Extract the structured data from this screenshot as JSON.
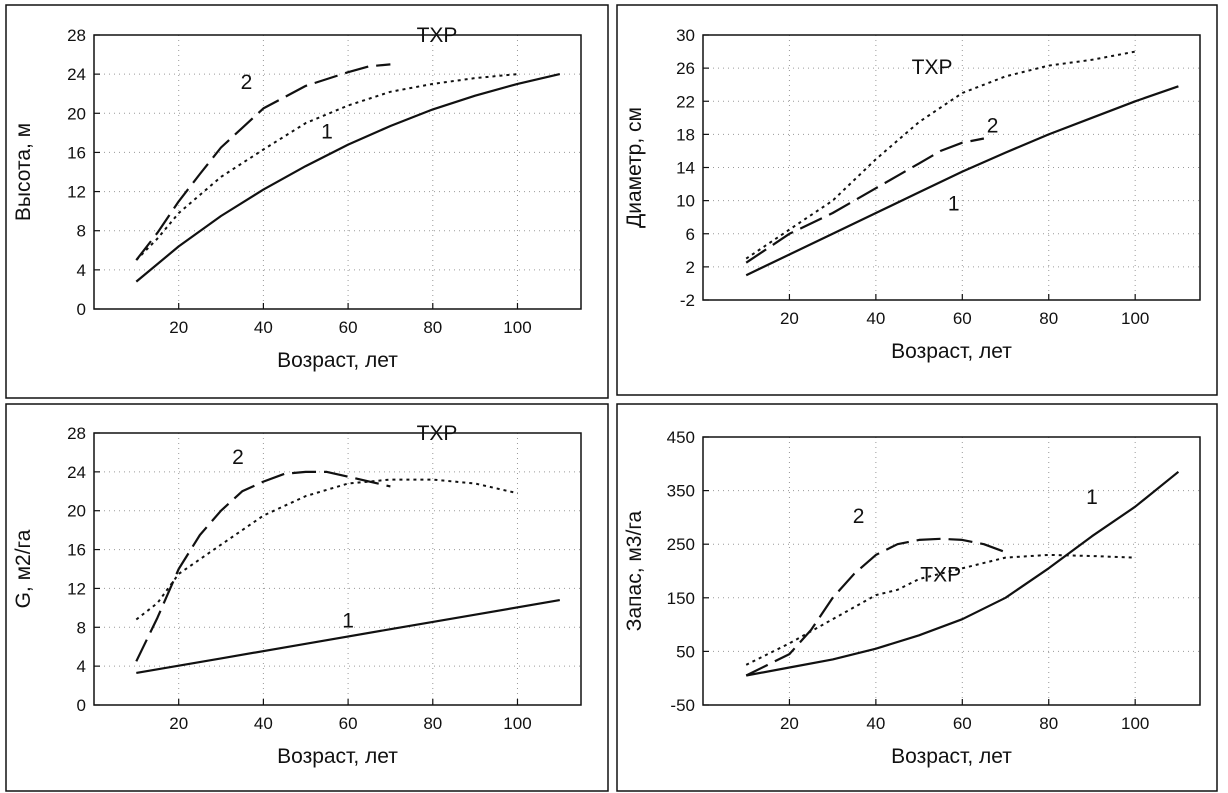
{
  "colors": {
    "ink": "#111111",
    "background": "#ffffff",
    "grid": "#9a9a9a"
  },
  "chart_data": [
    {
      "type": "line",
      "ylabel": "Высота, м",
      "xlabel": "Возраст, лет",
      "xlim": [
        0,
        115
      ],
      "ylim": [
        0,
        28
      ],
      "xticks": [
        20,
        40,
        60,
        80,
        100
      ],
      "yticks": [
        0,
        4,
        8,
        12,
        16,
        20,
        24,
        28
      ],
      "grid": true,
      "series": [
        {
          "name": "1",
          "style": "solid",
          "x": [
            10,
            20,
            30,
            40,
            50,
            60,
            70,
            80,
            90,
            100,
            110
          ],
          "y": [
            2.8,
            6.4,
            9.5,
            12.2,
            14.6,
            16.8,
            18.7,
            20.4,
            21.8,
            23.0,
            24.0
          ]
        },
        {
          "name": "2",
          "style": "dashed",
          "x": [
            10,
            15,
            20,
            25,
            30,
            40,
            50,
            60,
            65,
            70
          ],
          "y": [
            5.0,
            7.8,
            11.0,
            13.8,
            16.5,
            20.5,
            22.8,
            24.2,
            24.8,
            25.0
          ]
        },
        {
          "name": "ТХР",
          "style": "dotted",
          "x": [
            10,
            15,
            20,
            30,
            40,
            50,
            60,
            70,
            80,
            90,
            100
          ],
          "y": [
            5.0,
            7.2,
            9.8,
            13.5,
            16.3,
            19.0,
            20.8,
            22.2,
            23.0,
            23.6,
            24.0
          ]
        }
      ],
      "annotations": [
        {
          "text": "ТХР",
          "x": 81,
          "y": 27.3
        },
        {
          "text": "2",
          "x": 36,
          "y": 22.5
        },
        {
          "text": "1",
          "x": 55,
          "y": 17.4
        }
      ]
    },
    {
      "type": "line",
      "ylabel": "Диаметр, см",
      "xlabel": "Возраст, лет",
      "xlim": [
        0,
        115
      ],
      "ylim": [
        -2,
        30
      ],
      "xticks": [
        20,
        40,
        60,
        80,
        100
      ],
      "yticks": [
        -2,
        2,
        6,
        10,
        14,
        18,
        22,
        26,
        30
      ],
      "grid": true,
      "series": [
        {
          "name": "1",
          "style": "solid",
          "x": [
            10,
            20,
            30,
            40,
            50,
            60,
            70,
            80,
            90,
            100,
            110
          ],
          "y": [
            1.0,
            3.5,
            6.0,
            8.5,
            11.0,
            13.5,
            15.8,
            18.0,
            20.0,
            22.0,
            23.8
          ]
        },
        {
          "name": "2",
          "style": "dashed",
          "x": [
            10,
            20,
            30,
            40,
            45,
            50,
            55,
            60,
            65
          ],
          "y": [
            2.5,
            6.0,
            8.5,
            11.5,
            13.0,
            14.5,
            16.0,
            17.0,
            17.5
          ]
        },
        {
          "name": "ТХР",
          "style": "dotted",
          "x": [
            10,
            20,
            30,
            40,
            50,
            60,
            70,
            80,
            90,
            100
          ],
          "y": [
            3.0,
            6.5,
            10.0,
            15.0,
            19.5,
            23.0,
            25.0,
            26.3,
            27.0,
            28.0
          ]
        }
      ],
      "annotations": [
        {
          "text": "ТХР",
          "x": 53,
          "y": 25.3
        },
        {
          "text": "2",
          "x": 67,
          "y": 18.2
        },
        {
          "text": "1",
          "x": 58,
          "y": 8.8
        }
      ]
    },
    {
      "type": "line",
      "ylabel": "G, м2/га",
      "xlabel": "Возраст, лет",
      "xlim": [
        0,
        115
      ],
      "ylim": [
        0,
        28
      ],
      "xticks": [
        20,
        40,
        60,
        80,
        100
      ],
      "yticks": [
        0,
        4,
        8,
        12,
        16,
        20,
        24,
        28
      ],
      "grid": true,
      "series": [
        {
          "name": "1",
          "style": "solid",
          "x": [
            10,
            30,
            50,
            70,
            90,
            110
          ],
          "y": [
            3.3,
            4.8,
            6.3,
            7.8,
            9.3,
            10.8
          ]
        },
        {
          "name": "2",
          "style": "dashed",
          "x": [
            10,
            15,
            20,
            25,
            30,
            35,
            40,
            45,
            50,
            55,
            60,
            65,
            70
          ],
          "y": [
            4.5,
            9.0,
            14.0,
            17.5,
            20.0,
            22.0,
            23.0,
            23.8,
            24.0,
            24.0,
            23.5,
            23.0,
            22.5
          ]
        },
        {
          "name": "ТХР",
          "style": "dotted",
          "x": [
            10,
            15,
            20,
            30,
            40,
            50,
            60,
            70,
            80,
            90,
            100
          ],
          "y": [
            8.8,
            10.5,
            13.5,
            16.5,
            19.5,
            21.5,
            22.8,
            23.2,
            23.2,
            22.8,
            21.8
          ]
        }
      ],
      "annotations": [
        {
          "text": "ТХР",
          "x": 81,
          "y": 27.3
        },
        {
          "text": "2",
          "x": 34,
          "y": 24.8
        },
        {
          "text": "1",
          "x": 60,
          "y": 8.0
        }
      ]
    },
    {
      "type": "line",
      "ylabel": "Запас, м3/га",
      "xlabel": "Возраст, лет",
      "xlim": [
        0,
        115
      ],
      "ylim": [
        -50,
        450
      ],
      "xticks": [
        20,
        40,
        60,
        80,
        100
      ],
      "yticks": [
        -50,
        50,
        150,
        250,
        350,
        450
      ],
      "grid": true,
      "series": [
        {
          "name": "1",
          "style": "solid",
          "x": [
            10,
            20,
            30,
            40,
            50,
            60,
            70,
            80,
            90,
            100,
            110
          ],
          "y": [
            5,
            20,
            35,
            55,
            80,
            110,
            150,
            205,
            265,
            320,
            385
          ]
        },
        {
          "name": "2",
          "style": "dashed",
          "x": [
            10,
            20,
            25,
            30,
            35,
            40,
            45,
            50,
            55,
            60,
            65,
            70
          ],
          "y": [
            5,
            45,
            90,
            150,
            195,
            230,
            250,
            258,
            260,
            258,
            250,
            235
          ]
        },
        {
          "name": "ТХР",
          "style": "dotted",
          "x": [
            10,
            20,
            30,
            40,
            45,
            50,
            60,
            70,
            80,
            90,
            100
          ],
          "y": [
            25,
            65,
            110,
            155,
            165,
            185,
            205,
            225,
            230,
            228,
            225
          ]
        }
      ],
      "annotations": [
        {
          "text": "2",
          "x": 36,
          "y": 290
        },
        {
          "text": "ТХР",
          "x": 55,
          "y": 180
        },
        {
          "text": "1",
          "x": 90,
          "y": 325
        }
      ]
    }
  ]
}
